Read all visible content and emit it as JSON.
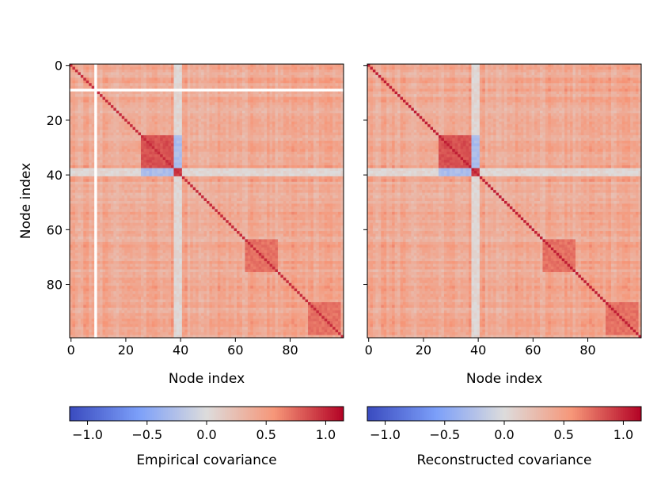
{
  "chart_data": [
    {
      "type": "heatmap",
      "title": "",
      "xlabel": "Node index",
      "ylabel": "Node index",
      "x_ticks": [
        "0",
        "20",
        "40",
        "60",
        "80"
      ],
      "y_ticks": [
        "0",
        "20",
        "40",
        "60",
        "80"
      ],
      "size": 100,
      "value_range": [
        -1.15,
        1.15
      ],
      "colormap": "coolwarm",
      "masked_node": 9,
      "blocks": [
        {
          "range": [
            26,
            38
          ],
          "within": 0.85
        },
        {
          "range": [
            38,
            41
          ],
          "within": 0.95
        },
        {
          "range": [
            64,
            76
          ],
          "within": 0.72
        },
        {
          "range": [
            87,
            99
          ],
          "within": 0.72
        }
      ],
      "background_value": 0.4,
      "diagonal_value": 1.0,
      "colorbar": {
        "label": "Empirical covariance",
        "ticks": [
          "−1.0",
          "−0.5",
          "0.0",
          "0.5",
          "1.0"
        ],
        "tick_values": [
          -1.0,
          -0.5,
          0.0,
          0.5,
          1.0
        ]
      }
    },
    {
      "type": "heatmap",
      "title": "",
      "xlabel": "Node index",
      "ylabel": "",
      "x_ticks": [
        "0",
        "20",
        "40",
        "60",
        "80"
      ],
      "y_ticks": [
        "",
        "",
        "",
        "",
        ""
      ],
      "size": 100,
      "value_range": [
        -1.15,
        1.15
      ],
      "colormap": "coolwarm",
      "masked_node": null,
      "blocks": [
        {
          "range": [
            26,
            38
          ],
          "within": 0.85
        },
        {
          "range": [
            38,
            41
          ],
          "within": 0.95
        },
        {
          "range": [
            64,
            76
          ],
          "within": 0.72
        },
        {
          "range": [
            87,
            99
          ],
          "within": 0.72
        }
      ],
      "background_value": 0.4,
      "diagonal_value": 1.05,
      "colorbar": {
        "label": "Reconstructed covariance",
        "ticks": [
          "−1.0",
          "−0.5",
          "0.0",
          "0.5",
          "1.0"
        ],
        "tick_values": [
          -1.0,
          -0.5,
          0.0,
          0.5,
          1.0
        ]
      }
    }
  ]
}
